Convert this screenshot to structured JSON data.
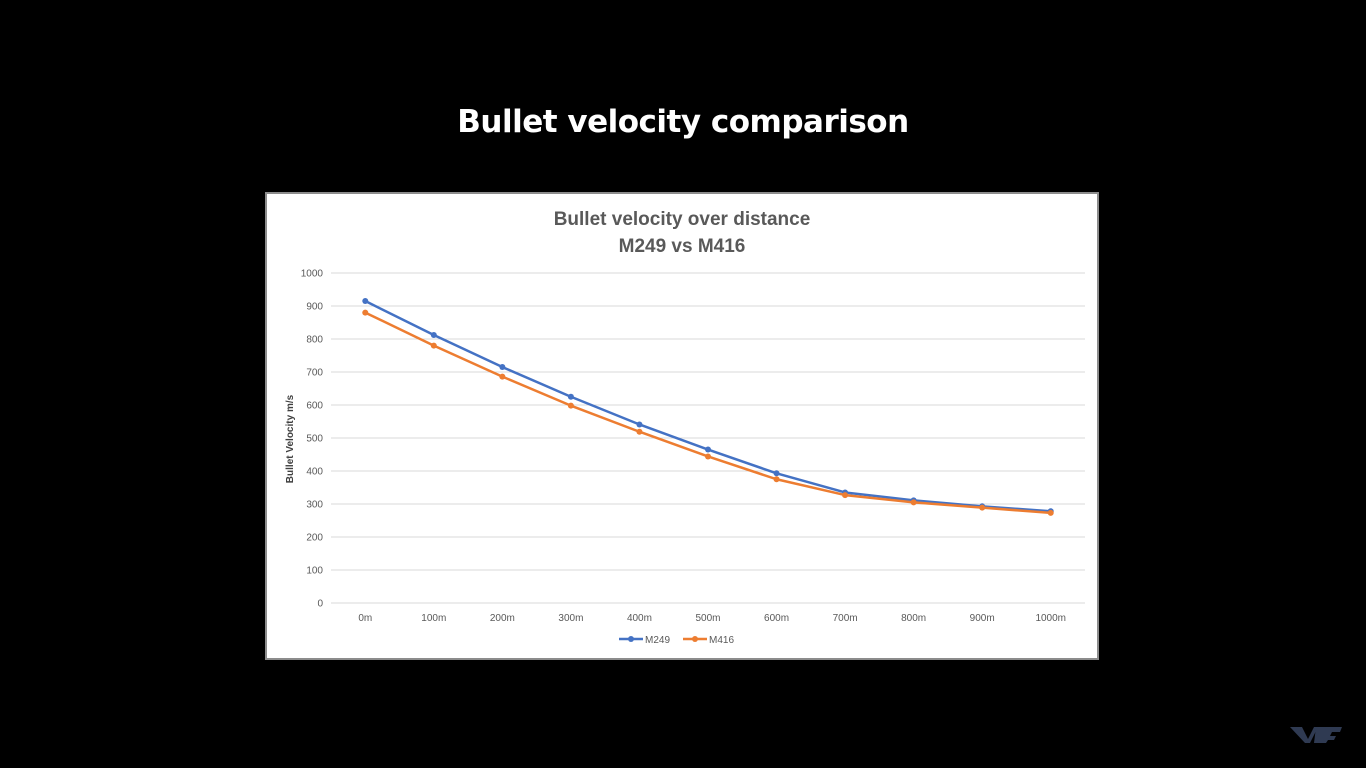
{
  "slide": {
    "title": "Bullet velocity comparison"
  },
  "colors": {
    "background": "#000000",
    "M249": "#4472C4",
    "M416": "#ED7D31",
    "grid": "#d9d9d9",
    "text": "#595959"
  },
  "chart_data": {
    "type": "line",
    "title_lines": [
      "Bullet velocity over distance",
      "M249 vs M416"
    ],
    "xlabel": "",
    "ylabel": "Bullet Velocity m/s",
    "categories": [
      "0m",
      "100m",
      "200m",
      "300m",
      "400m",
      "500m",
      "600m",
      "700m",
      "800m",
      "900m",
      "1000m"
    ],
    "ylim": [
      0,
      1000
    ],
    "yticks": [
      0,
      100,
      200,
      300,
      400,
      500,
      600,
      700,
      800,
      900,
      1000
    ],
    "grid": true,
    "legend_position": "bottom",
    "series": [
      {
        "name": "M249",
        "color": "#4472C4",
        "values": [
          915,
          812,
          715,
          625,
          541,
          465,
          393,
          335,
          311,
          293,
          278
        ]
      },
      {
        "name": "M416",
        "color": "#ED7D31",
        "values": [
          880,
          780,
          686,
          598,
          519,
          444,
          375,
          327,
          305,
          289,
          273
        ]
      }
    ]
  },
  "watermark": {
    "icon": "logo-watermark-icon"
  }
}
